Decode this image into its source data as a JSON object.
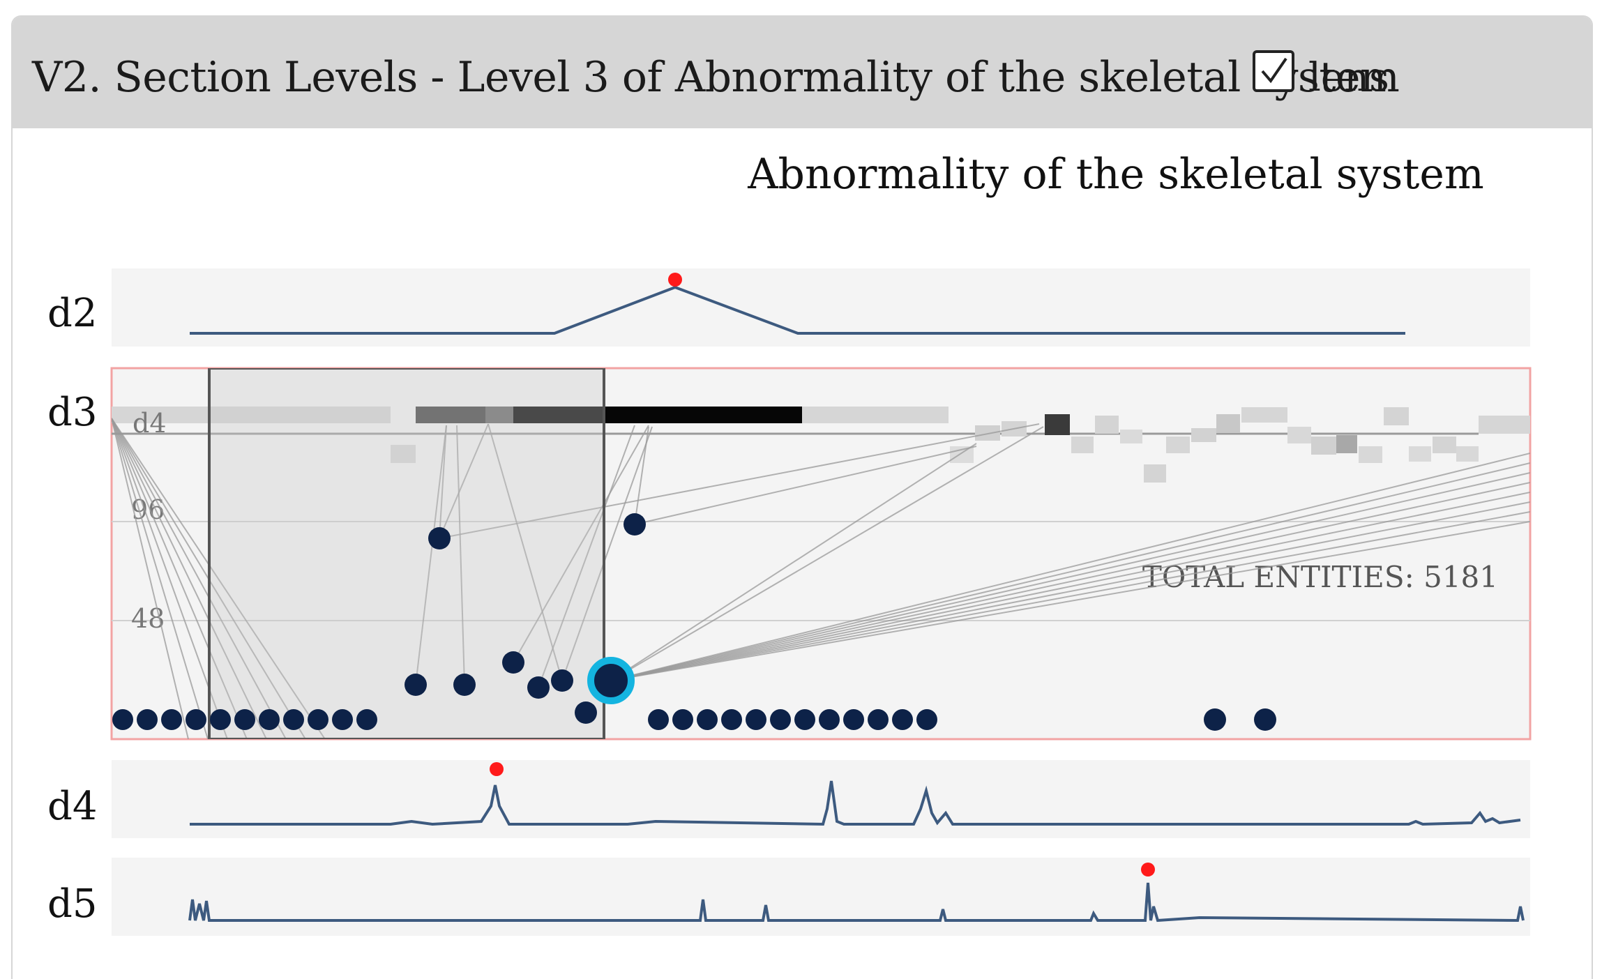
{
  "header": {
    "title": "V2. Section Levels - Level 3 of Abnormality of the skeletal system",
    "lens_checked": true,
    "lens_label": "lens"
  },
  "chart": {
    "title": "Abnormality of the skeletal system",
    "rows": [
      "d2",
      "d3",
      "d4",
      "d5"
    ],
    "inner_label": "d4",
    "ticks": [
      "96",
      "48"
    ],
    "total_text": "TOTAL ENTITIES: 5181",
    "colors": {
      "line": "#3d5a7f",
      "dot": "#0d2248",
      "peak": "#ff1a1a",
      "highlight": "#14b4e0",
      "frame": "#f2a3a3",
      "row_bg": "#f4f4f4"
    }
  },
  "chart_data": {
    "type": "scatter",
    "title": "Abnormality of the skeletal system",
    "y_ticks": [
      96,
      48
    ],
    "total_entities": 5181
  }
}
